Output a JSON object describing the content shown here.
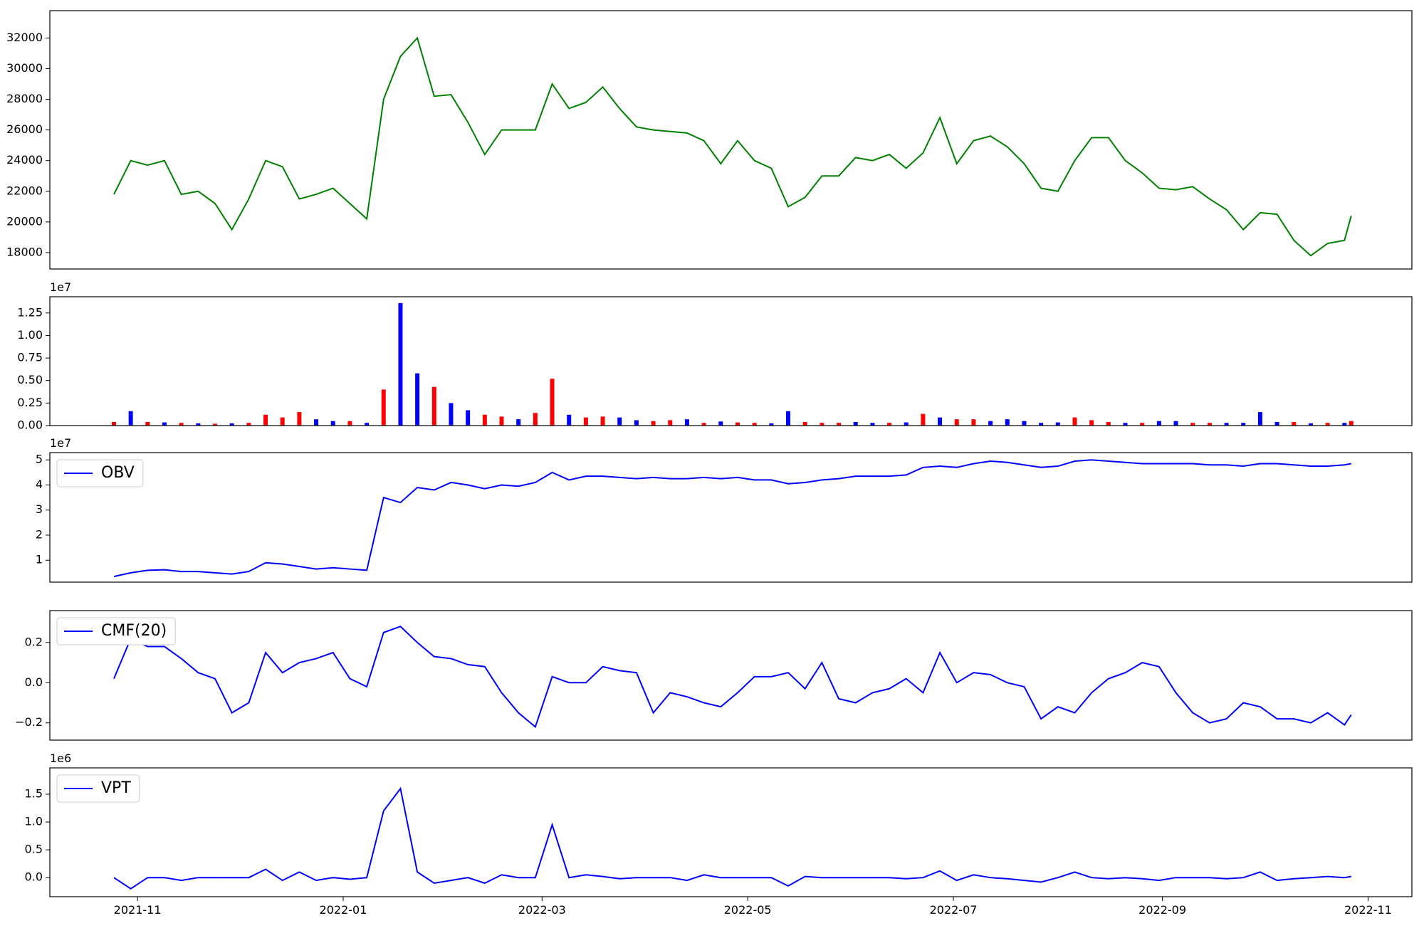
{
  "chart_data": {
    "x": [
      "2021-10-25",
      "2021-10-30",
      "2021-11-04",
      "2021-11-09",
      "2021-11-14",
      "2021-11-19",
      "2021-11-24",
      "2021-11-29",
      "2021-12-04",
      "2021-12-09",
      "2021-12-14",
      "2021-12-19",
      "2021-12-24",
      "2021-12-29",
      "2022-01-03",
      "2022-01-08",
      "2022-01-13",
      "2022-01-18",
      "2022-01-23",
      "2022-01-28",
      "2022-02-02",
      "2022-02-07",
      "2022-02-12",
      "2022-02-17",
      "2022-02-22",
      "2022-02-27",
      "2022-03-04",
      "2022-03-09",
      "2022-03-14",
      "2022-03-19",
      "2022-03-24",
      "2022-03-29",
      "2022-04-03",
      "2022-04-08",
      "2022-04-13",
      "2022-04-18",
      "2022-04-23",
      "2022-04-28",
      "2022-05-03",
      "2022-05-08",
      "2022-05-13",
      "2022-05-18",
      "2022-05-23",
      "2022-05-28",
      "2022-06-02",
      "2022-06-07",
      "2022-06-12",
      "2022-06-17",
      "2022-06-22",
      "2022-06-27",
      "2022-07-02",
      "2022-07-07",
      "2022-07-12",
      "2022-07-17",
      "2022-07-22",
      "2022-07-27",
      "2022-08-01",
      "2022-08-06",
      "2022-08-11",
      "2022-08-16",
      "2022-08-21",
      "2022-08-26",
      "2022-08-31",
      "2022-09-05",
      "2022-09-10",
      "2022-09-15",
      "2022-09-20",
      "2022-09-25",
      "2022-09-30",
      "2022-10-05",
      "2022-10-10",
      "2022-10-15",
      "2022-10-20",
      "2022-10-25",
      "2022-10-27"
    ],
    "xlim": [
      "2021-10-06",
      "2022-11-14"
    ],
    "xticks": [
      {
        "value": "2021-11-01",
        "label": "2021-11"
      },
      {
        "value": "2022-01-01",
        "label": "2022-01"
      },
      {
        "value": "2022-03-01",
        "label": "2022-03"
      },
      {
        "value": "2022-05-01",
        "label": "2022-05"
      },
      {
        "value": "2022-07-01",
        "label": "2022-07"
      },
      {
        "value": "2022-09-01",
        "label": "2022-09"
      },
      {
        "value": "2022-11-01",
        "label": "2022-11"
      }
    ],
    "panels": [
      {
        "type": "line",
        "ylim": [
          16930,
          33780
        ],
        "yticks": [
          18000,
          20000,
          22000,
          24000,
          26000,
          28000,
          30000,
          32000
        ],
        "series": [
          {
            "color": "green",
            "values": [
              21800,
              24000,
              23700,
              24000,
              21800,
              22000,
              21200,
              19500,
              21500,
              24000,
              23600,
              21500,
              21800,
              22200,
              21200,
              20200,
              28000,
              30800,
              32000,
              28200,
              28300,
              26500,
              24400,
              26000,
              26000,
              26000,
              29000,
              27400,
              27800,
              28800,
              27400,
              26200,
              26000,
              25900,
              25800,
              25300,
              23800,
              25300,
              24000,
              23500,
              21000,
              21600,
              23000,
              23000,
              24200,
              24000,
              24400,
              23500,
              24500,
              26800,
              23800,
              25300,
              25600,
              24900,
              23800,
              22200,
              22000,
              24000,
              25500,
              25500,
              24000,
              23200,
              22200,
              22100,
              22300,
              21500,
              20800,
              19500,
              20600,
              20500,
              18800,
              17800,
              18600,
              18800,
              20400
            ]
          }
        ]
      },
      {
        "type": "bar",
        "ylim": [
          0,
          14300000
        ],
        "offset_text": "1e7",
        "yticks": [
          {
            "value": 0,
            "label": "0.00"
          },
          {
            "value": 2500000,
            "label": "0.25"
          },
          {
            "value": 5000000,
            "label": "0.50"
          },
          {
            "value": 7500000,
            "label": "0.75"
          },
          {
            "value": 10000000,
            "label": "1.00"
          },
          {
            "value": 12500000,
            "label": "1.25"
          }
        ],
        "series": [
          {
            "values": [
              400000,
              1600000,
              400000,
              350000,
              300000,
              250000,
              200000,
              250000,
              300000,
              1200000,
              900000,
              1500000,
              700000,
              500000,
              500000,
              300000,
              4000000,
              13600000,
              5800000,
              4300000,
              2500000,
              1700000,
              1200000,
              1000000,
              700000,
              1400000,
              5200000,
              1200000,
              900000,
              1000000,
              900000,
              600000,
              500000,
              600000,
              700000,
              300000,
              450000,
              350000,
              300000,
              250000,
              1600000,
              400000,
              300000,
              300000,
              400000,
              300000,
              300000,
              350000,
              1300000,
              900000,
              700000,
              700000,
              500000,
              700000,
              500000,
              300000,
              350000,
              900000,
              600000,
              400000,
              300000,
              300000,
              500000,
              500000,
              300000,
              300000,
              300000,
              300000,
              1500000,
              400000,
              400000,
              250000,
              300000,
              300000,
              500000
            ],
            "colors": [
              "red",
              "blue",
              "red",
              "blue",
              "red",
              "blue",
              "red",
              "blue",
              "red",
              "red",
              "red",
              "red",
              "blue",
              "blue",
              "red",
              "blue",
              "red",
              "blue",
              "blue",
              "red",
              "blue",
              "blue",
              "red",
              "red",
              "blue",
              "red",
              "red",
              "blue",
              "red",
              "red",
              "blue",
              "blue",
              "red",
              "red",
              "blue",
              "red",
              "blue",
              "red",
              "red",
              "blue",
              "blue",
              "red",
              "red",
              "red",
              "blue",
              "blue",
              "red",
              "blue",
              "red",
              "blue",
              "red",
              "red",
              "blue",
              "blue",
              "blue",
              "blue",
              "blue",
              "red",
              "red",
              "red",
              "blue",
              "red",
              "blue",
              "blue",
              "red",
              "red",
              "blue",
              "blue",
              "blue",
              "blue",
              "red",
              "blue",
              "red",
              "blue",
              "red"
            ]
          }
        ]
      },
      {
        "type": "line",
        "ylim": [
          1270000,
          52900000
        ],
        "offset_text": "1e7",
        "legend": "upper left",
        "yticks": [
          {
            "value": 10000000,
            "label": "1"
          },
          {
            "value": 20000000,
            "label": "2"
          },
          {
            "value": 30000000,
            "label": "3"
          },
          {
            "value": 40000000,
            "label": "4"
          },
          {
            "value": 50000000,
            "label": "5"
          }
        ],
        "series": [
          {
            "name": "OBV",
            "color": "blue",
            "values": [
              3500000,
              5000000,
              6000000,
              6200000,
              5500000,
              5500000,
              5000000,
              4500000,
              5500000,
              9000000,
              8500000,
              7500000,
              6500000,
              7000000,
              6500000,
              6000000,
              35000000,
              33000000,
              39000000,
              38000000,
              41000000,
              40000000,
              38500000,
              40000000,
              39500000,
              41000000,
              45000000,
              42000000,
              43500000,
              43500000,
              43000000,
              42500000,
              43000000,
              42500000,
              42500000,
              43000000,
              42500000,
              43000000,
              42000000,
              42000000,
              40500000,
              41000000,
              42000000,
              42500000,
              43500000,
              43500000,
              43500000,
              44000000,
              47000000,
              47500000,
              47000000,
              48500000,
              49500000,
              49000000,
              48000000,
              47000000,
              47500000,
              49500000,
              50000000,
              49500000,
              49000000,
              48500000,
              48500000,
              48500000,
              48500000,
              48000000,
              48000000,
              47500000,
              48500000,
              48500000,
              48000000,
              47500000,
              47500000,
              48000000,
              48500000
            ]
          }
        ]
      },
      {
        "type": "line",
        "ylim": [
          -0.286,
          0.359
        ],
        "legend": "upper left",
        "yticks": [
          {
            "value": -0.2,
            "label": "−0.2"
          },
          {
            "value": 0,
            "label": "0.0"
          },
          0.2
        ],
        "series": [
          {
            "name": "CMF(20)",
            "color": "blue",
            "values": [
              0.02,
              0.22,
              0.18,
              0.18,
              0.12,
              0.05,
              0.02,
              -0.15,
              -0.1,
              0.15,
              0.05,
              0.1,
              0.12,
              0.15,
              0.02,
              -0.02,
              0.25,
              0.28,
              0.2,
              0.13,
              0.12,
              0.09,
              0.08,
              -0.05,
              -0.15,
              -0.22,
              0.03,
              0.0,
              0.0,
              0.08,
              0.06,
              0.05,
              -0.15,
              -0.05,
              -0.07,
              -0.1,
              -0.12,
              -0.05,
              0.03,
              0.03,
              0.05,
              -0.03,
              0.1,
              -0.08,
              -0.1,
              -0.05,
              -0.03,
              0.02,
              -0.05,
              0.15,
              0.0,
              0.05,
              0.04,
              0.0,
              -0.02,
              -0.18,
              -0.12,
              -0.15,
              -0.05,
              0.02,
              0.05,
              0.1,
              0.08,
              -0.05,
              -0.15,
              -0.2,
              -0.18,
              -0.1,
              -0.12,
              -0.18,
              -0.18,
              -0.2,
              -0.15,
              -0.21,
              -0.16
            ]
          }
        ]
      },
      {
        "type": "line",
        "ylim": [
          -343000,
          1973000
        ],
        "offset_text": "1e6",
        "legend": "upper left",
        "yticks": [
          {
            "value": 0,
            "label": "0.0"
          },
          {
            "value": 500000,
            "label": "0.5"
          },
          {
            "value": 1000000,
            "label": "1.0"
          },
          {
            "value": 1500000,
            "label": "1.5"
          }
        ],
        "series": [
          {
            "name": "VPT",
            "color": "blue",
            "values": [
              0,
              -200000,
              0,
              0,
              -50000,
              0,
              0,
              0,
              0,
              150000,
              -50000,
              100000,
              -50000,
              0,
              -30000,
              0,
              1200000,
              1600000,
              100000,
              -100000,
              -50000,
              0,
              -100000,
              50000,
              0,
              0,
              950000,
              0,
              50000,
              20000,
              -20000,
              0,
              0,
              0,
              -50000,
              50000,
              0,
              0,
              0,
              0,
              -150000,
              20000,
              0,
              0,
              0,
              0,
              0,
              -20000,
              0,
              120000,
              -50000,
              50000,
              0,
              -20000,
              -50000,
              -80000,
              0,
              100000,
              0,
              -20000,
              0,
              -20000,
              -50000,
              0,
              0,
              0,
              -20000,
              0,
              100000,
              -50000,
              -20000,
              0,
              20000,
              0,
              20000
            ]
          }
        ]
      }
    ]
  }
}
